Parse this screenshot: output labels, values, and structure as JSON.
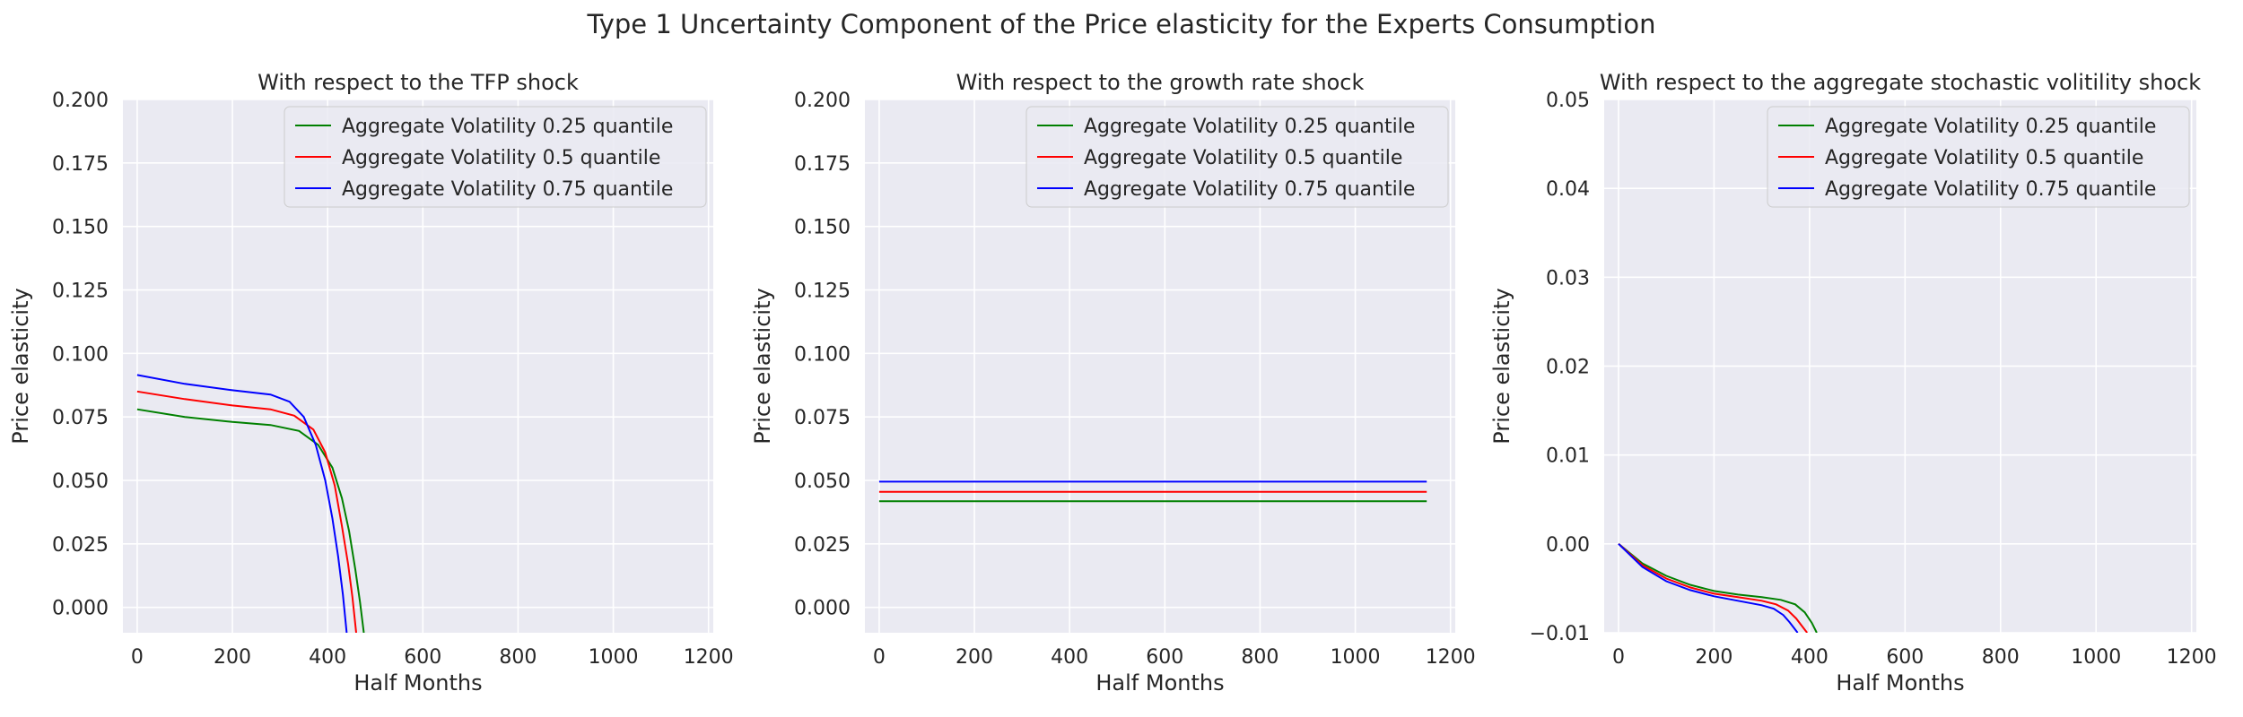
{
  "figure_title": "Type 1 Uncertainty Component of the Price elasticity for the Experts Consumption",
  "chart_data": [
    {
      "type": "line",
      "title": "With respect to the TFP shock",
      "xlabel": "Half Months",
      "ylabel": "Price elasticity",
      "xlim": [
        -30,
        1210
      ],
      "ylim": [
        -0.01,
        0.2
      ],
      "xticks": [
        0,
        200,
        400,
        600,
        800,
        1000,
        1200
      ],
      "yticks": [
        0.0,
        0.025,
        0.05,
        0.075,
        0.1,
        0.125,
        0.15,
        0.175,
        0.2
      ],
      "ytick_labels": [
        "0.000",
        "0.025",
        "0.050",
        "0.075",
        "0.100",
        "0.125",
        "0.150",
        "0.175",
        "0.200"
      ],
      "grid": true,
      "legend_position": "top-right",
      "series": [
        {
          "name": "Aggregate Volatility 0.25 quantile",
          "color": "#008000",
          "x": [
            0,
            100,
            200,
            280,
            340,
            380,
            410,
            430,
            445,
            458,
            468,
            476
          ],
          "y": [
            0.078,
            0.075,
            0.073,
            0.0718,
            0.0695,
            0.064,
            0.055,
            0.043,
            0.03,
            0.015,
            0.002,
            -0.01
          ]
        },
        {
          "name": "Aggregate Volatility 0.5 quantile",
          "color": "#ff0000",
          "x": [
            0,
            100,
            200,
            280,
            330,
            370,
            395,
            415,
            430,
            443,
            452,
            460
          ],
          "y": [
            0.085,
            0.082,
            0.0795,
            0.078,
            0.0755,
            0.07,
            0.061,
            0.048,
            0.032,
            0.017,
            0.004,
            -0.01
          ]
        },
        {
          "name": "Aggregate Volatility 0.75 quantile",
          "color": "#0000ff",
          "x": [
            0,
            100,
            200,
            280,
            320,
            350,
            375,
            395,
            410,
            422,
            432,
            440
          ],
          "y": [
            0.0915,
            0.088,
            0.0855,
            0.0838,
            0.081,
            0.075,
            0.064,
            0.05,
            0.035,
            0.02,
            0.005,
            -0.01
          ]
        }
      ]
    },
    {
      "type": "line",
      "title": "With respect to the growth rate shock",
      "xlabel": "Half Months",
      "ylabel": "Price elasticity",
      "xlim": [
        -30,
        1210
      ],
      "ylim": [
        -0.01,
        0.2
      ],
      "xticks": [
        0,
        200,
        400,
        600,
        800,
        1000,
        1200
      ],
      "yticks": [
        0.0,
        0.025,
        0.05,
        0.075,
        0.1,
        0.125,
        0.15,
        0.175,
        0.2
      ],
      "ytick_labels": [
        "0.000",
        "0.025",
        "0.050",
        "0.075",
        "0.100",
        "0.125",
        "0.150",
        "0.175",
        "0.200"
      ],
      "grid": true,
      "legend_position": "top-right",
      "series": [
        {
          "name": "Aggregate Volatility 0.25 quantile",
          "color": "#008000",
          "x": [
            0,
            1150
          ],
          "y": [
            0.0418,
            0.0418
          ]
        },
        {
          "name": "Aggregate Volatility 0.5 quantile",
          "color": "#ff0000",
          "x": [
            0,
            1150
          ],
          "y": [
            0.0455,
            0.0455
          ]
        },
        {
          "name": "Aggregate Volatility 0.75 quantile",
          "color": "#0000ff",
          "x": [
            0,
            1150
          ],
          "y": [
            0.0495,
            0.0495
          ]
        }
      ]
    },
    {
      "type": "line",
      "title": "With respect to the aggregate stochastic volitility shock",
      "xlabel": "Half Months",
      "ylabel": "Price elasticity",
      "xlim": [
        -30,
        1210
      ],
      "ylim": [
        -0.01,
        0.05
      ],
      "xticks": [
        0,
        200,
        400,
        600,
        800,
        1000,
        1200
      ],
      "yticks": [
        -0.01,
        0.0,
        0.01,
        0.02,
        0.03,
        0.04,
        0.05
      ],
      "ytick_labels": [
        "−0.01",
        "0.00",
        "0.01",
        "0.02",
        "0.03",
        "0.04",
        "0.05"
      ],
      "grid": true,
      "legend_position": "top-right",
      "series": [
        {
          "name": "Aggregate Volatility 0.25 quantile",
          "color": "#008000",
          "x": [
            0,
            50,
            100,
            150,
            200,
            250,
            300,
            340,
            370,
            390,
            405,
            415
          ],
          "y": [
            0.0,
            -0.0022,
            -0.0036,
            -0.0046,
            -0.0053,
            -0.0057,
            -0.006,
            -0.0063,
            -0.0068,
            -0.0077,
            -0.0089,
            -0.01
          ]
        },
        {
          "name": "Aggregate Volatility 0.5 quantile",
          "color": "#ff0000",
          "x": [
            0,
            50,
            100,
            150,
            200,
            250,
            300,
            330,
            355,
            372,
            385,
            395
          ],
          "y": [
            0.0,
            -0.0024,
            -0.0039,
            -0.0049,
            -0.0056,
            -0.006,
            -0.0064,
            -0.0068,
            -0.0075,
            -0.0084,
            -0.0093,
            -0.01
          ]
        },
        {
          "name": "Aggregate Volatility 0.75 quantile",
          "color": "#0000ff",
          "x": [
            0,
            50,
            100,
            150,
            200,
            250,
            300,
            325,
            345,
            358,
            368,
            375
          ],
          "y": [
            0.0,
            -0.0026,
            -0.0042,
            -0.0052,
            -0.0059,
            -0.0064,
            -0.0069,
            -0.0073,
            -0.008,
            -0.0088,
            -0.0095,
            -0.01
          ]
        }
      ]
    }
  ]
}
